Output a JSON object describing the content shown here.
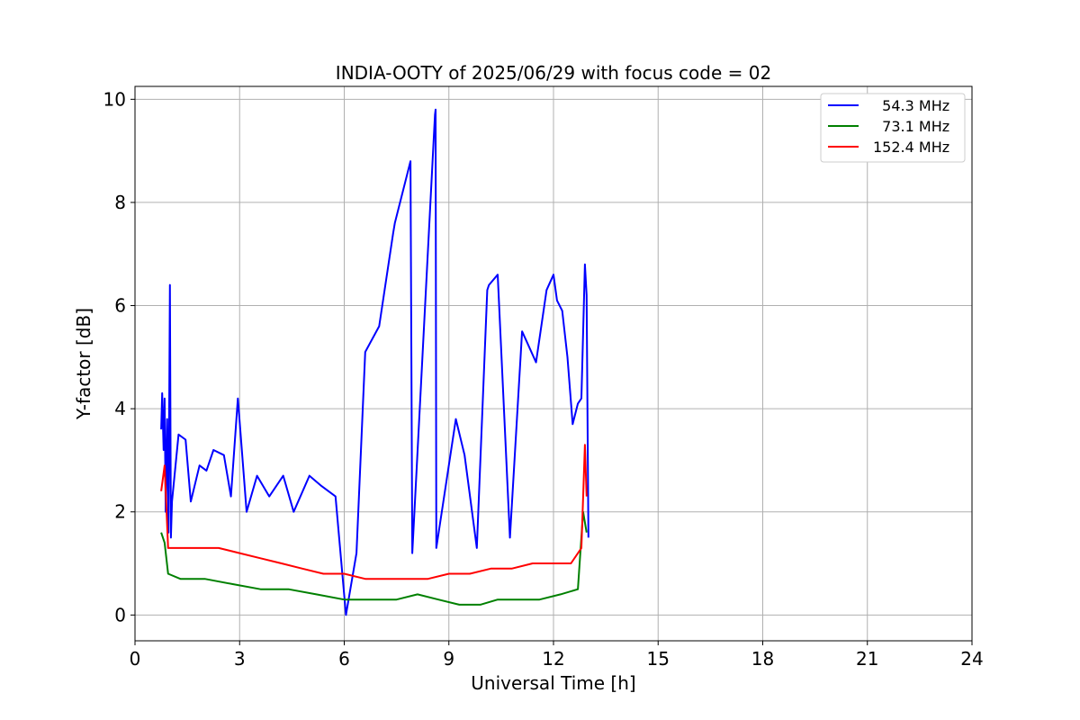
{
  "chart_data": {
    "type": "line",
    "title": "INDIA-OOTY of 2025/06/29 with focus code = 02",
    "xlabel": "Universal Time [h]",
    "ylabel": "Y-factor [dB]",
    "xlim": [
      0,
      24
    ],
    "ylim": [
      -0.5,
      10.25
    ],
    "xticks": [
      0,
      3,
      6,
      9,
      12,
      15,
      18,
      21,
      24
    ],
    "yticks": [
      0,
      2,
      4,
      6,
      8,
      10
    ],
    "grid": true,
    "legend_position": "top-right",
    "series": [
      {
        "name": "  54.3 MHz",
        "color": "#0000ff",
        "x": [
          0.75,
          0.78,
          0.82,
          0.85,
          0.88,
          0.92,
          0.96,
          1.0,
          1.03,
          1.06,
          1.25,
          1.45,
          1.6,
          1.85,
          2.05,
          2.25,
          2.55,
          2.75,
          2.95,
          3.2,
          3.5,
          3.85,
          4.25,
          4.55,
          5.0,
          5.35,
          5.75,
          6.05,
          6.35,
          6.6,
          7.0,
          7.4,
          7.45,
          7.9,
          7.95,
          8.6,
          8.62,
          8.64,
          9.2,
          9.45,
          9.8,
          10.1,
          10.15,
          10.4,
          10.75,
          11.1,
          11.3,
          11.5,
          11.8,
          12.0,
          12.1,
          12.25,
          12.4,
          12.55,
          12.7,
          12.8,
          12.9,
          12.95,
          13.0
        ],
        "y": [
          3.6,
          4.3,
          3.2,
          4.2,
          2.0,
          3.8,
          1.6,
          6.4,
          1.5,
          2.2,
          3.5,
          3.4,
          2.2,
          2.9,
          2.8,
          3.2,
          3.1,
          2.3,
          4.2,
          2.0,
          2.7,
          2.3,
          2.7,
          2.0,
          2.7,
          2.5,
          2.3,
          0.0,
          1.2,
          5.1,
          5.6,
          7.4,
          7.6,
          8.8,
          1.2,
          9.7,
          9.8,
          1.3,
          3.8,
          3.1,
          1.3,
          6.3,
          6.4,
          6.6,
          1.5,
          5.5,
          5.2,
          4.9,
          6.3,
          6.6,
          6.1,
          5.9,
          5.0,
          3.7,
          4.1,
          4.2,
          6.8,
          6.2,
          1.5
        ]
      },
      {
        "name": "  73.1 MHz",
        "color": "#008000",
        "x": [
          0.75,
          0.85,
          0.95,
          1.3,
          2.0,
          2.8,
          3.6,
          4.4,
          5.2,
          6.0,
          6.8,
          7.5,
          8.1,
          8.7,
          9.3,
          9.9,
          10.4,
          11.0,
          11.6,
          12.2,
          12.7,
          12.85,
          12.95
        ],
        "y": [
          1.6,
          1.4,
          0.8,
          0.7,
          0.7,
          0.6,
          0.5,
          0.5,
          0.4,
          0.3,
          0.3,
          0.3,
          0.4,
          0.3,
          0.2,
          0.2,
          0.3,
          0.3,
          0.3,
          0.4,
          0.5,
          2.0,
          1.6
        ]
      },
      {
        "name": "152.4 MHz",
        "color": "#ff0000",
        "x": [
          0.75,
          0.85,
          0.95,
          1.3,
          1.8,
          2.4,
          3.0,
          3.6,
          4.2,
          4.8,
          5.4,
          6.0,
          6.6,
          7.2,
          7.8,
          8.4,
          9.0,
          9.6,
          10.2,
          10.8,
          11.4,
          12.0,
          12.5,
          12.8,
          12.9,
          12.95
        ],
        "y": [
          2.4,
          2.9,
          1.3,
          1.3,
          1.3,
          1.3,
          1.2,
          1.1,
          1.0,
          0.9,
          0.8,
          0.8,
          0.7,
          0.7,
          0.7,
          0.7,
          0.8,
          0.8,
          0.9,
          0.9,
          1.0,
          1.0,
          1.0,
          1.3,
          3.3,
          2.3
        ]
      }
    ]
  }
}
